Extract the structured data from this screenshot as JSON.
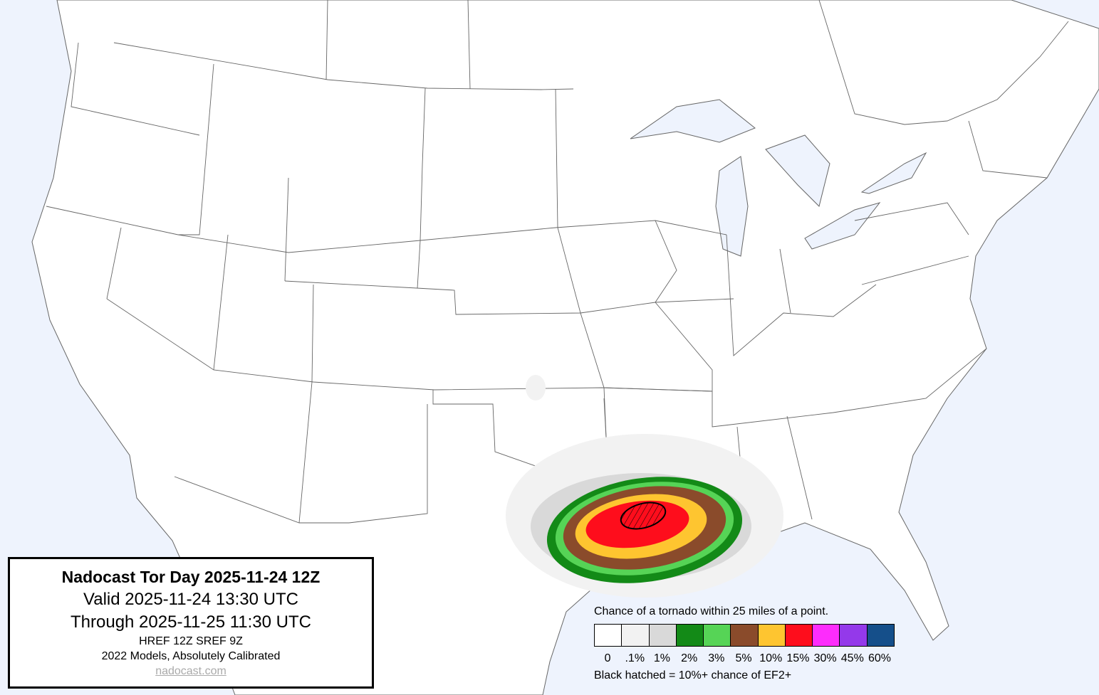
{
  "title_box": {
    "title": "Nadocast Tor Day 2025-11-24 12Z",
    "valid": "Valid 2025-11-24 13:30 UTC",
    "through": "Through 2025-11-25 11:30 UTC",
    "models": "HREF 12Z SREF 9Z",
    "calibration": "2022 Models, Absolutely Calibrated",
    "link": "nadocast.com"
  },
  "legend": {
    "title": "Chance of a tornado within 25 miles of a point.",
    "bins": [
      {
        "label": "0",
        "color": "#ffffff"
      },
      {
        "label": ".1%",
        "color": "#f2f2f2"
      },
      {
        "label": "1%",
        "color": "#d9d9d9"
      },
      {
        "label": "2%",
        "color": "#138a17"
      },
      {
        "label": "3%",
        "color": "#56d456"
      },
      {
        "label": "5%",
        "color": "#8a4b2b"
      },
      {
        "label": "10%",
        "color": "#fec530"
      },
      {
        "label": "15%",
        "color": "#fe0d1c"
      },
      {
        "label": "30%",
        "color": "#fd2cfc"
      },
      {
        "label": "45%",
        "color": "#9439ea"
      },
      {
        "label": "60%",
        "color": "#154f8a"
      }
    ],
    "note": "Black hatched = 10%+ chance of EF2+"
  },
  "colors": {
    "water": "#eef3fd",
    "land": "#ffffff",
    "borders": "#555555"
  }
}
